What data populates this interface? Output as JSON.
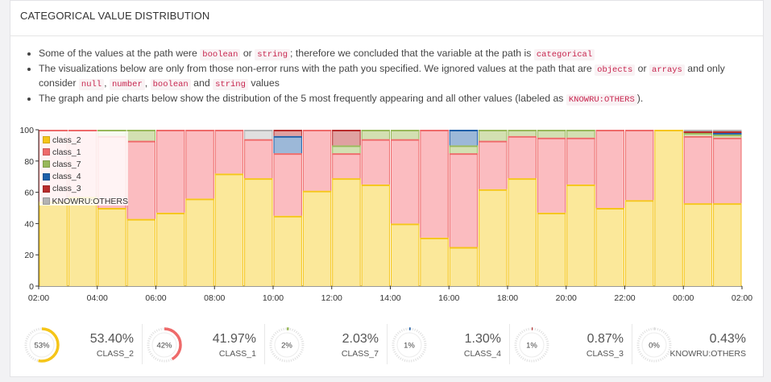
{
  "card": {
    "title": "CATEGORICAL VALUE DISTRIBUTION"
  },
  "notes": [
    {
      "segments": [
        {
          "t": "Some of the values at the path were "
        },
        {
          "c": "boolean"
        },
        {
          "t": " or "
        },
        {
          "c": "string"
        },
        {
          "t": "; therefore we concluded that the variable at the path is "
        },
        {
          "c": "categorical"
        }
      ]
    },
    {
      "segments": [
        {
          "t": "The visualizations below are only from those non-error runs with the path you specified. We ignored values at the path that are "
        },
        {
          "c": "objects"
        },
        {
          "t": " or "
        },
        {
          "c": "arrays"
        },
        {
          "t": " and only consider "
        },
        {
          "c": "null"
        },
        {
          "t": ", "
        },
        {
          "c": "number"
        },
        {
          "t": ", "
        },
        {
          "c": "boolean"
        },
        {
          "t": " and "
        },
        {
          "c": "string"
        },
        {
          "t": " values"
        }
      ]
    },
    {
      "segments": [
        {
          "t": "The graph and pie charts below show the distribution of the 5 most frequently appearing and all other values (labeled as "
        },
        {
          "c": "KNOWRU:OTHERS"
        },
        {
          "t": ")."
        }
      ]
    }
  ],
  "chart_data": {
    "type": "bar",
    "stacked": true,
    "ylim": [
      0,
      100
    ],
    "yticks": [
      0,
      20,
      40,
      60,
      80,
      100
    ],
    "xticks": [
      "02:00",
      "04:00",
      "06:00",
      "08:00",
      "10:00",
      "12:00",
      "14:00",
      "16:00",
      "18:00",
      "20:00",
      "22:00",
      "00:00",
      "02:00"
    ],
    "legend_position": "top-left",
    "series": [
      {
        "name": "class_2",
        "color": "#f5c518",
        "fill": "#fbe89a",
        "values": [
          54,
          57,
          50,
          43,
          47,
          56,
          72,
          69,
          45,
          61,
          69,
          65,
          40,
          31,
          25,
          62,
          69,
          47,
          65,
          50,
          55,
          100,
          53,
          53
        ]
      },
      {
        "name": "class_1",
        "color": "#ee6a6a",
        "fill": "#fbbcc0",
        "values": [
          46,
          43,
          46,
          50,
          53,
          44,
          28,
          25,
          40,
          39,
          16,
          29,
          54,
          69,
          60,
          31,
          27,
          48,
          30,
          50,
          45,
          0,
          43,
          42
        ]
      },
      {
        "name": "class_7",
        "color": "#98b85a",
        "fill": "#d3e0b2",
        "values": [
          0,
          0,
          4,
          7,
          0,
          0,
          0,
          0,
          0,
          0,
          5,
          6,
          6,
          0,
          5,
          7,
          4,
          5,
          5,
          0,
          0,
          0,
          2,
          2
        ]
      },
      {
        "name": "class_4",
        "color": "#1e5fa8",
        "fill": "#9cb8d8",
        "values": [
          0,
          0,
          0,
          0,
          0,
          0,
          0,
          0,
          11,
          0,
          0,
          0,
          0,
          0,
          10,
          0,
          0,
          0,
          0,
          0,
          0,
          0,
          0,
          1
        ]
      },
      {
        "name": "class_3",
        "color": "#b82c2c",
        "fill": "#e0a1a1",
        "values": [
          0,
          0,
          0,
          0,
          0,
          0,
          0,
          0,
          4,
          0,
          10,
          0,
          0,
          0,
          0,
          0,
          0,
          0,
          0,
          0,
          0,
          0,
          1,
          1
        ]
      },
      {
        "name": "KNOWRU:OTHERS",
        "color": "#b3b3b3",
        "fill": "#e0e0e0",
        "values": [
          0,
          0,
          0,
          0,
          0,
          0,
          0,
          6,
          0,
          0,
          0,
          0,
          0,
          0,
          0,
          0,
          0,
          0,
          0,
          0,
          0,
          0,
          1,
          1
        ]
      }
    ]
  },
  "summary": [
    {
      "pie": "53%",
      "percent": "53.40%",
      "label": "CLASS_2",
      "fraction": 0.534,
      "color": "#f5c518"
    },
    {
      "pie": "42%",
      "percent": "41.97%",
      "label": "CLASS_1",
      "fraction": 0.4197,
      "color": "#ee6a6a"
    },
    {
      "pie": "2%",
      "percent": "2.03%",
      "label": "CLASS_7",
      "fraction": 0.0203,
      "color": "#98b85a"
    },
    {
      "pie": "1%",
      "percent": "1.30%",
      "label": "CLASS_4",
      "fraction": 0.013,
      "color": "#1e5fa8"
    },
    {
      "pie": "1%",
      "percent": "0.87%",
      "label": "CLASS_3",
      "fraction": 0.0087,
      "color": "#b82c2c"
    },
    {
      "pie": "0%",
      "percent": "0.43%",
      "label": "KNOWRU:OTHERS",
      "fraction": 0.0043,
      "color": "#b3b3b3"
    }
  ]
}
